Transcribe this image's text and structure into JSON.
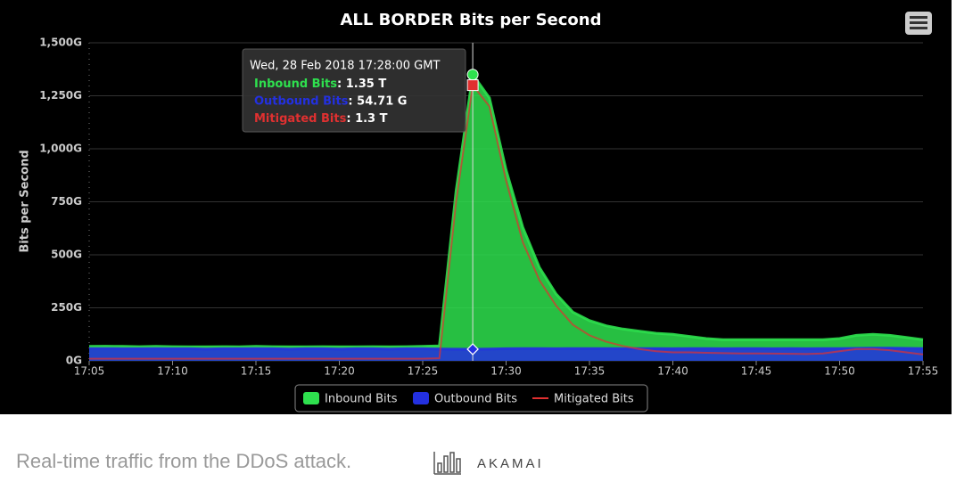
{
  "chart_data": {
    "type": "area",
    "title": "ALL BORDER Bits per Second",
    "ylabel": "Bits per Second",
    "x": [
      "17:05",
      "17:06",
      "17:07",
      "17:08",
      "17:09",
      "17:10",
      "17:11",
      "17:12",
      "17:13",
      "17:14",
      "17:15",
      "17:16",
      "17:17",
      "17:18",
      "17:19",
      "17:20",
      "17:21",
      "17:22",
      "17:23",
      "17:24",
      "17:25",
      "17:26",
      "17:27",
      "17:28",
      "17:29",
      "17:30",
      "17:31",
      "17:32",
      "17:33",
      "17:34",
      "17:35",
      "17:36",
      "17:37",
      "17:38",
      "17:39",
      "17:40",
      "17:41",
      "17:42",
      "17:43",
      "17:44",
      "17:45",
      "17:46",
      "17:47",
      "17:48",
      "17:49",
      "17:50",
      "17:51",
      "17:52",
      "17:53",
      "17:54",
      "17:55"
    ],
    "xlim": [
      "17:05",
      "17:55"
    ],
    "xticks": [
      "17:05",
      "17:10",
      "17:15",
      "17:20",
      "17:25",
      "17:30",
      "17:35",
      "17:40",
      "17:45",
      "17:50",
      "17:55"
    ],
    "ylim": [
      0,
      1500
    ],
    "yticks": [
      {
        "value": 0,
        "label": "0G"
      },
      {
        "value": 250,
        "label": "250G"
      },
      {
        "value": 500,
        "label": "500G"
      },
      {
        "value": 750,
        "label": "750G"
      },
      {
        "value": 1000,
        "label": "1,000G"
      },
      {
        "value": 1250,
        "label": "1,250G"
      },
      {
        "value": 1500,
        "label": "1,500G"
      }
    ],
    "grid": true,
    "legend": "bottom",
    "series": [
      {
        "name": "Inbound Bits",
        "color": "#2ee04e",
        "values": [
          68,
          69,
          68,
          67,
          68,
          67,
          66,
          66,
          67,
          66,
          68,
          67,
          66,
          66,
          67,
          66,
          66,
          67,
          66,
          67,
          68,
          70,
          800,
          1350,
          1240,
          900,
          630,
          440,
          315,
          230,
          190,
          165,
          150,
          140,
          130,
          125,
          115,
          105,
          100,
          100,
          100,
          100,
          100,
          100,
          100,
          105,
          120,
          125,
          120,
          110,
          100
        ]
      },
      {
        "name": "Outbound Bits",
        "color": "#2330e0",
        "values": [
          58,
          58,
          57,
          57,
          58,
          57,
          57,
          56,
          57,
          57,
          58,
          57,
          56,
          57,
          57,
          56,
          57,
          57,
          56,
          57,
          57,
          56,
          55,
          54.71,
          56,
          57,
          58,
          58,
          57,
          58,
          58,
          58,
          57,
          58,
          58,
          57,
          58,
          58,
          57,
          58,
          58,
          57,
          58,
          57,
          58,
          58,
          59,
          60,
          60,
          59,
          58
        ]
      },
      {
        "name": "Mitigated Bits",
        "color": "#e03030",
        "values": [
          10,
          10,
          10,
          10,
          10,
          10,
          10,
          10,
          10,
          10,
          10,
          10,
          10,
          10,
          10,
          10,
          10,
          10,
          10,
          10,
          10,
          12,
          750,
          1300,
          1200,
          850,
          560,
          380,
          260,
          170,
          120,
          90,
          70,
          55,
          45,
          40,
          40,
          38,
          36,
          35,
          35,
          34,
          33,
          32,
          35,
          45,
          55,
          55,
          50,
          40,
          30
        ]
      }
    ],
    "tooltip": {
      "title": "Wed, 28 Feb 2018 17:28:00 GMT",
      "value_labels": [
        "1.35 T",
        "54.71 G",
        "1.3 T"
      ]
    }
  },
  "caption": {
    "text": "Real-time traffic from the DDoS attack.",
    "brand": "AKAMAI"
  }
}
